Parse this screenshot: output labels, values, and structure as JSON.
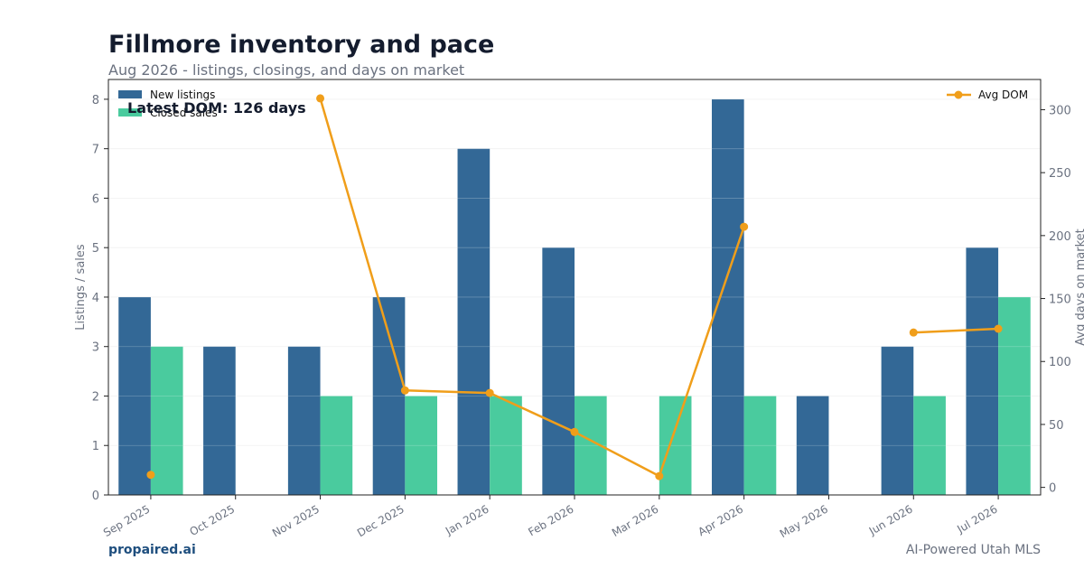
{
  "header": {
    "title": "Fillmore inventory and pace",
    "subtitle": "Aug 2026 - listings, closings, and days on market"
  },
  "annotation": "Latest DOM: 126 days",
  "footer": {
    "brand": "propaired.ai",
    "tagline": "AI-Powered Utah MLS"
  },
  "colors": {
    "new_listings": "#336896",
    "closed_sales": "#4acb9e",
    "avg_dom": "#f09e1a",
    "axis_text": "#6b7280"
  },
  "chart_data": {
    "type": "bar",
    "categories": [
      "Sep 2025",
      "Oct 2025",
      "Nov 2025",
      "Dec 2025",
      "Jan 2026",
      "Feb 2026",
      "Mar 2026",
      "Apr 2026",
      "May 2026",
      "Jun 2026",
      "Jul 2026"
    ],
    "series": [
      {
        "name": "New listings",
        "type": "bar",
        "axis": "left",
        "values": [
          4,
          3,
          3,
          4,
          7,
          5,
          0,
          8,
          2,
          3,
          5
        ]
      },
      {
        "name": "Closed sales",
        "type": "bar",
        "axis": "left",
        "values": [
          3,
          0,
          2,
          2,
          2,
          2,
          2,
          2,
          0,
          2,
          4
        ]
      },
      {
        "name": "Avg DOM",
        "type": "line",
        "axis": "right",
        "values": [
          10,
          null,
          309,
          77,
          75,
          44,
          9,
          207,
          null,
          123,
          126
        ]
      }
    ],
    "ylabel": "Listings / sales",
    "y2label": "Avg days on market",
    "ylim": [
      0,
      8.4
    ],
    "y2lim": [
      -6,
      324
    ],
    "yticks": [
      "0",
      "1",
      "2",
      "3",
      "4",
      "5",
      "6",
      "7",
      "8"
    ],
    "y2ticks": [
      "0",
      "50",
      "100",
      "150",
      "200",
      "250",
      "300"
    ],
    "legend_left": "top-left",
    "legend_right": "top-right",
    "grid": "horizontal"
  }
}
